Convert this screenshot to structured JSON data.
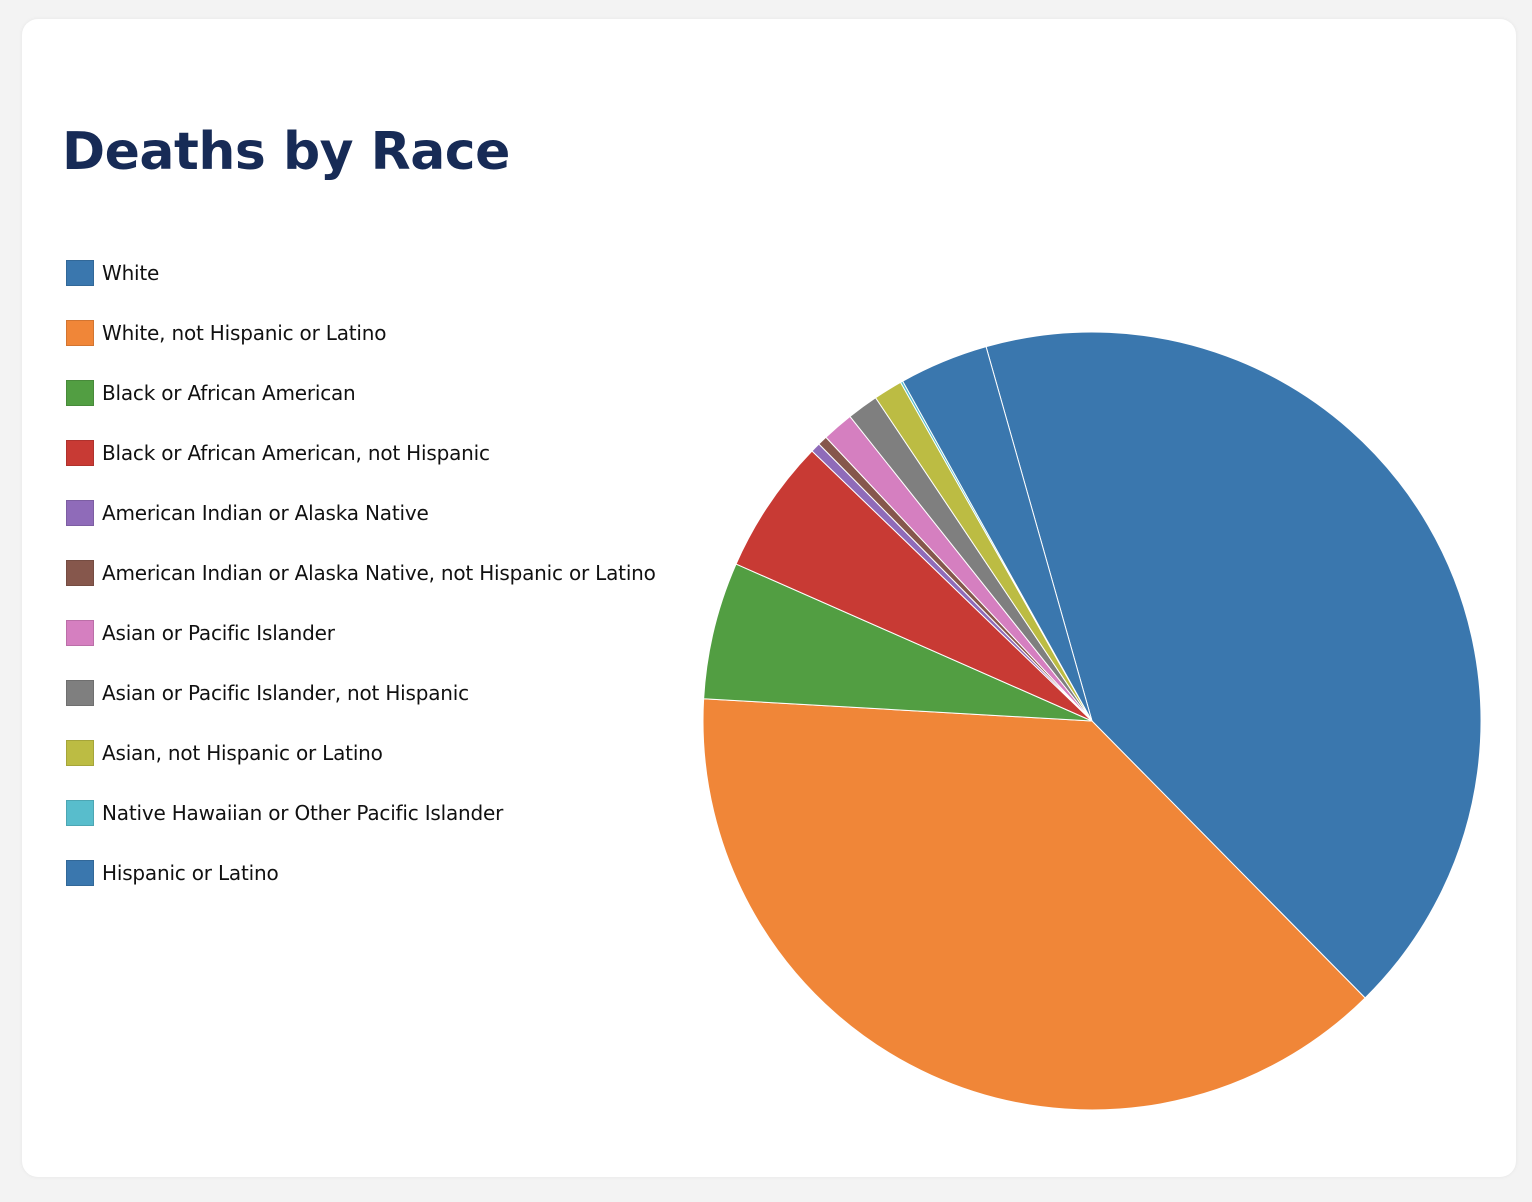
{
  "chart_data": {
    "type": "pie",
    "title": "Deaths by Race",
    "legend_position": "left",
    "start_angle_deg": -15.8,
    "slices": [
      {
        "name": "White",
        "value": 42.0,
        "color": "#3a77ae"
      },
      {
        "name": "White, not Hispanic or Latino",
        "value": 38.3,
        "color": "#f08638"
      },
      {
        "name": "Black or African American",
        "value": 5.7,
        "color": "#529e42"
      },
      {
        "name": "Black or African American, not Hispanic",
        "value": 5.6,
        "color": "#c83a34"
      },
      {
        "name": "American Indian or Alaska Native",
        "value": 0.4,
        "color": "#8f6bb9"
      },
      {
        "name": "American Indian or Alaska Native, not Hispanic or Latino",
        "value": 0.4,
        "color": "#86574c"
      },
      {
        "name": "Asian or Pacific Islander",
        "value": 1.3,
        "color": "#d57fc0"
      },
      {
        "name": "Asian or Pacific Islander, not Hispanic",
        "value": 1.3,
        "color": "#7f7f7f"
      },
      {
        "name": "Asian, not Hispanic or Latino",
        "value": 1.2,
        "color": "#bcbc43"
      },
      {
        "name": "Native Hawaiian or Other Pacific Islander",
        "value": 0.1,
        "color": "#58bdcc"
      },
      {
        "name": "Hispanic or Latino",
        "value": 3.7,
        "color": "#3a77ae"
      }
    ]
  }
}
